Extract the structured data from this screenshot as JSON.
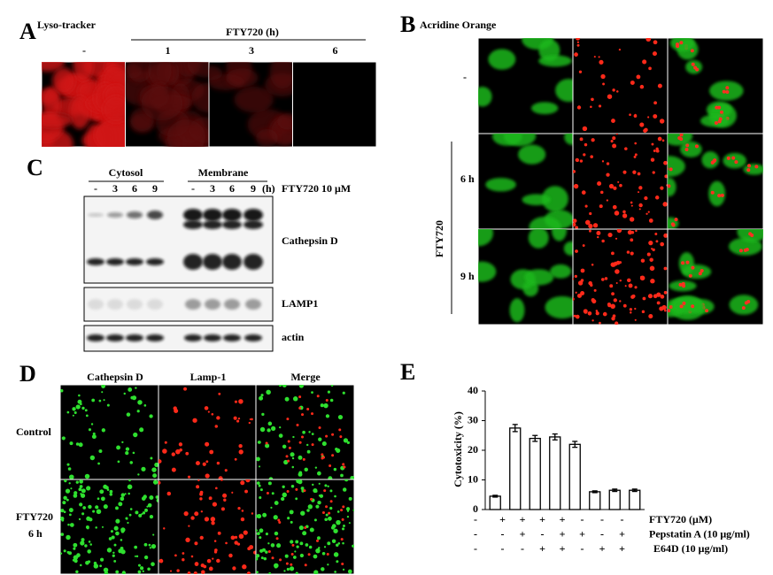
{
  "panel_a": {
    "label": "A",
    "title": "Lyso-tracker",
    "treatment": "FTY720 (h)",
    "columns": [
      "-",
      "1",
      "3",
      "6"
    ]
  },
  "panel_b": {
    "label": "B",
    "title": "Acridine Orange",
    "rows": [
      "-",
      "6 h",
      "9 h"
    ],
    "treatment": "FTY720"
  },
  "panel_c": {
    "label": "C",
    "groups": [
      "Cytosol",
      "Membrane"
    ],
    "lanes": [
      "-",
      "3",
      "6",
      "9",
      "-",
      "3",
      "6",
      "9"
    ],
    "unit": "(h)",
    "treatment": "FTY720 10 μM",
    "blots": [
      "Cathepsin D",
      "LAMP1",
      "actin"
    ]
  },
  "panel_d": {
    "label": "D",
    "columns": [
      "Cathepsin D",
      "Lamp-1",
      "Merge"
    ],
    "rows": [
      [
        "Control"
      ],
      [
        "FTY720",
        "6 h"
      ]
    ]
  },
  "chart_data": {
    "type": "bar",
    "label": "E",
    "ylabel": "Cytotoxicity (%)",
    "values": [
      4.5,
      27.5,
      24,
      24.5,
      22,
      6,
      6.5,
      6.5
    ],
    "errors": [
      0.3,
      1.2,
      1,
      1,
      1,
      0.3,
      0.4,
      0.4
    ],
    "ylim": [
      0,
      40
    ],
    "yticks": [
      0,
      10,
      20,
      30,
      40
    ],
    "color": "#ffffff",
    "conditions": [
      {
        "name": "FTY720 (μM)",
        "marks": [
          "-",
          "+",
          "+",
          "+",
          "+",
          "-",
          "-",
          "-"
        ]
      },
      {
        "name": "Pepstatin A (10 μg/ml)",
        "marks": [
          "-",
          "-",
          "+",
          "-",
          "+",
          "+",
          "-",
          "+"
        ]
      },
      {
        "name": "E64D (10 μg/ml)",
        "marks": [
          "-",
          "-",
          "-",
          "+",
          "+",
          "-",
          "+",
          "+"
        ]
      }
    ]
  }
}
